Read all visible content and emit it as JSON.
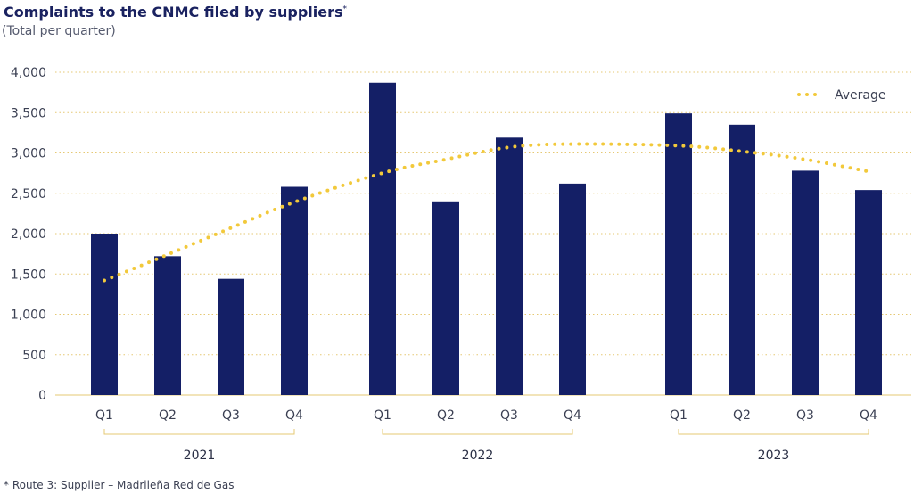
{
  "title": "Complaints to the CNMC filed by suppliers",
  "title_mark": "*",
  "subtitle": "(Total per quarter)",
  "footnote": "*  Route 3: Supplier – Madrileña Red de Gas",
  "colors": {
    "bar": "#141f66",
    "average": "#f2c93b",
    "grid": "#e6c873",
    "bracket": "#e6c873"
  },
  "chart_data": {
    "type": "bar",
    "categories": [
      "Q1",
      "Q2",
      "Q3",
      "Q4",
      "Q1",
      "Q2",
      "Q3",
      "Q4",
      "Q1",
      "Q2",
      "Q3",
      "Q4"
    ],
    "groups": [
      {
        "label": "2021",
        "start": 0,
        "end": 3
      },
      {
        "label": "2022",
        "start": 4,
        "end": 7
      },
      {
        "label": "2023",
        "start": 8,
        "end": 11
      }
    ],
    "series": [
      {
        "name": "",
        "type": "bar",
        "values": [
          2000,
          1720,
          1440,
          2580,
          3870,
          2400,
          3190,
          2620,
          3490,
          3350,
          2780,
          2540
        ]
      },
      {
        "name": "Average",
        "type": "line",
        "style": "dotted",
        "values": [
          1420,
          1740,
          2070,
          2390,
          2750,
          2920,
          3070,
          3110,
          3090,
          3020,
          2920,
          2770
        ]
      }
    ],
    "yticks": [
      "0",
      "500",
      "1,000",
      "1,500",
      "2,000",
      "2,500",
      "3,000",
      "3,500",
      "4,000"
    ],
    "ylim": [
      0,
      4000
    ],
    "grid": true,
    "legend": "top-right"
  }
}
